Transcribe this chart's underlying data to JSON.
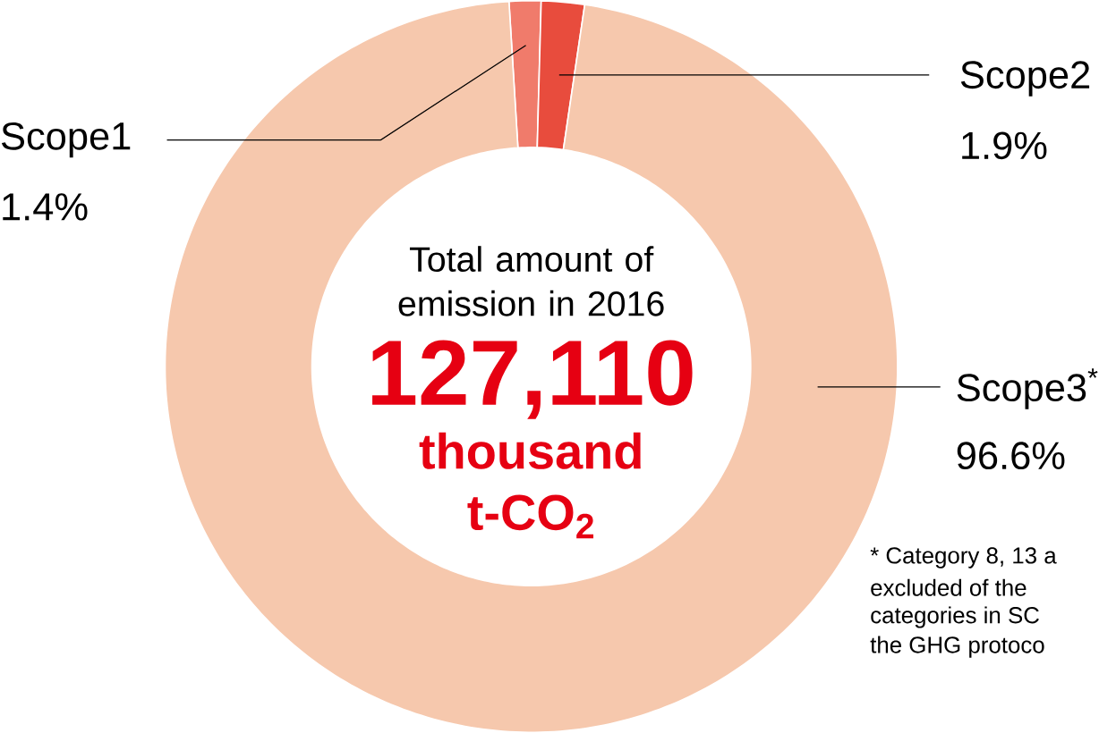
{
  "chart_data": {
    "type": "donut",
    "title": "Total amount of emission in 2016",
    "categories": [
      "Scope1",
      "Scope2",
      "Scope3$^{*}$"
    ],
    "values": [
      1.4,
      1.9,
      96.6
    ],
    "colors": [
      "#f07b6b",
      "#e84c3d",
      "#f6c8ad"
    ],
    "value_labels": [
      "1.4%",
      "1.9%",
      "96.6%"
    ],
    "annotations": [
      "127,110",
      "thousand t-CO$_{2}$",
      "* Category 8, 13 a",
      "excluded of the",
      "categories in SC",
      "the GHG protoco"
    ]
  }
}
